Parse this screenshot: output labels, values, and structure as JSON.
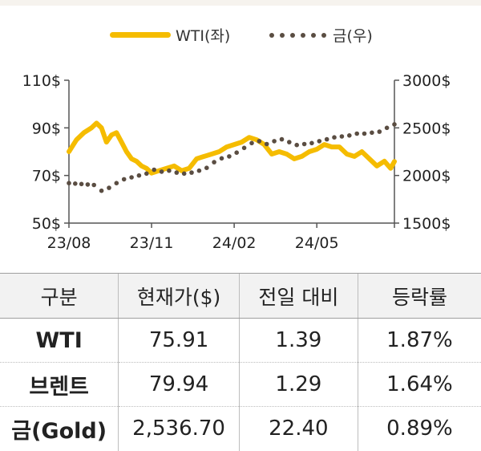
{
  "legend": [
    {
      "label": "WTI(좌)",
      "style": "line",
      "color": "#f5bc00"
    },
    {
      "label": "금(우)",
      "style": "dots",
      "color": "#5a4d42"
    }
  ],
  "chart_data": {
    "type": "line",
    "x_tick_labels": [
      "23/08",
      "23/11",
      "24/02",
      "24/05"
    ],
    "y_left_ticks": [
      "110$",
      "90$",
      "70$",
      "50$"
    ],
    "y_right_ticks": [
      "3000$",
      "2500$",
      "2000$",
      "1500$"
    ],
    "y_left_range": [
      50,
      110
    ],
    "y_right_range": [
      1500,
      3000
    ],
    "x_range": [
      0,
      13
    ],
    "series": [
      {
        "name": "WTI(좌)",
        "axis": "left",
        "color": "#f5bc00",
        "style": "line",
        "x": [
          0,
          0.3,
          0.6,
          0.9,
          1.1,
          1.3,
          1.5,
          1.7,
          1.9,
          2.1,
          2.3,
          2.5,
          2.7,
          2.9,
          3.1,
          3.3,
          3.6,
          3.9,
          4.2,
          4.5,
          4.8,
          5.1,
          5.4,
          5.7,
          6.0,
          6.3,
          6.6,
          6.9,
          7.2,
          7.5,
          7.8,
          8.1,
          8.4,
          8.7,
          9.0,
          9.3,
          9.6,
          9.9,
          10.2,
          10.5,
          10.8,
          11.1,
          11.4,
          11.7,
          12.0,
          12.3,
          12.6,
          12.85,
          13.0
        ],
        "y": [
          80,
          85,
          88,
          90,
          92,
          90,
          84,
          87,
          88,
          84,
          80,
          77,
          76,
          74,
          73,
          71,
          72,
          73,
          74,
          72,
          73,
          77,
          78,
          79,
          80,
          82,
          83,
          84,
          86,
          85,
          83,
          79,
          80,
          79,
          77,
          78,
          80,
          81,
          83,
          82,
          82,
          79,
          78,
          80,
          77,
          74,
          76,
          73,
          75.9
        ]
      },
      {
        "name": "금(우)",
        "axis": "right",
        "color": "#5a4d42",
        "style": "dots",
        "x": [
          0,
          0.5,
          1.0,
          1.3,
          1.6,
          1.9,
          2.2,
          2.5,
          2.8,
          3.1,
          3.4,
          3.7,
          4.0,
          4.3,
          4.6,
          4.9,
          5.2,
          5.5,
          5.8,
          6.1,
          6.4,
          6.7,
          7.0,
          7.3,
          7.6,
          7.9,
          8.2,
          8.5,
          8.8,
          9.1,
          9.4,
          9.7,
          10.0,
          10.3,
          10.6,
          10.9,
          11.2,
          11.5,
          11.8,
          12.1,
          12.4,
          12.7,
          13.0
        ],
        "y": [
          1920,
          1910,
          1900,
          1840,
          1870,
          1920,
          1960,
          1980,
          2000,
          2020,
          2060,
          2040,
          2050,
          2030,
          2020,
          2030,
          2050,
          2080,
          2140,
          2180,
          2200,
          2240,
          2290,
          2340,
          2360,
          2330,
          2360,
          2380,
          2350,
          2320,
          2330,
          2340,
          2360,
          2380,
          2400,
          2410,
          2420,
          2440,
          2440,
          2450,
          2460,
          2500,
          2536.7
        ]
      }
    ],
    "grid": false
  },
  "table": {
    "headers": [
      "구분",
      "현재가($)",
      "전일 대비",
      "등락률"
    ],
    "rows": [
      [
        "WTI",
        "75.91",
        "1.39",
        "1.87%"
      ],
      [
        "브렌트",
        "79.94",
        "1.29",
        "1.64%"
      ],
      [
        "금(Gold)",
        "2,536.70",
        "22.40",
        "0.89%"
      ]
    ]
  }
}
